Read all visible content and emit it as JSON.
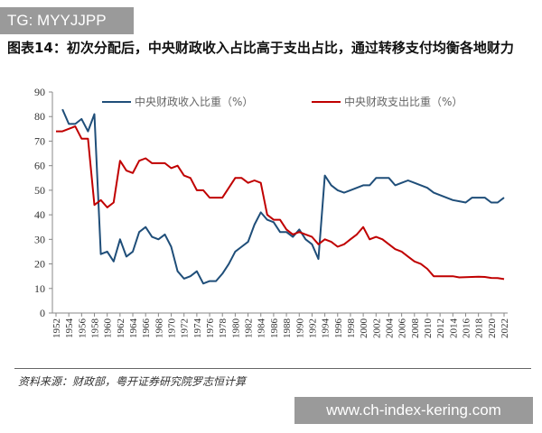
{
  "watermark_top": "TG: MYYJJPP",
  "watermark_bottom": "www.ch-index-kering.com",
  "title": "图表14：初次分配后，中央财政收入占比高于支出占比，通过转移支付均衡各地财力",
  "source": "资料来源：财政部，粤开证券研究院罗志恒计算",
  "chart_data": {
    "type": "line",
    "title": "",
    "xlabel": "",
    "ylabel": "",
    "ylim": [
      0,
      90
    ],
    "yticks": [
      0,
      10,
      20,
      30,
      40,
      50,
      60,
      70,
      80,
      90
    ],
    "xlim": [
      1952,
      2022
    ],
    "xticks": [
      1952,
      1954,
      1956,
      1958,
      1960,
      1962,
      1964,
      1966,
      1968,
      1970,
      1972,
      1974,
      1976,
      1978,
      1980,
      1982,
      1984,
      1986,
      1988,
      1990,
      1992,
      1994,
      1996,
      1998,
      2000,
      2002,
      2004,
      2006,
      2008,
      2010,
      2012,
      2014,
      2016,
      2018,
      2020,
      2022
    ],
    "grid": false,
    "legend": "top",
    "x": [
      1952,
      1953,
      1954,
      1955,
      1956,
      1957,
      1958,
      1959,
      1960,
      1961,
      1962,
      1963,
      1964,
      1965,
      1966,
      1967,
      1968,
      1969,
      1970,
      1971,
      1972,
      1973,
      1974,
      1975,
      1976,
      1977,
      1978,
      1979,
      1980,
      1981,
      1982,
      1983,
      1984,
      1985,
      1986,
      1987,
      1988,
      1989,
      1990,
      1991,
      1992,
      1993,
      1994,
      1995,
      1996,
      1997,
      1998,
      1999,
      2000,
      2001,
      2002,
      2003,
      2004,
      2005,
      2006,
      2007,
      2008,
      2009,
      2010,
      2011,
      2012,
      2013,
      2014,
      2015,
      2016,
      2017,
      2018,
      2019,
      2020,
      2021,
      2022
    ],
    "series": [
      {
        "name": "中央财政收入比重（%）",
        "color": "#1f4e79",
        "values": [
          null,
          83,
          77,
          77,
          79,
          74,
          81,
          24,
          25,
          21,
          30,
          23,
          25,
          33,
          35,
          31,
          30,
          32,
          27,
          17,
          14,
          15,
          17,
          12,
          13,
          13,
          16,
          20,
          25,
          27,
          29,
          36,
          41,
          38,
          37,
          33,
          33,
          31,
          34,
          30,
          28,
          22,
          56,
          52,
          50,
          49,
          50,
          51,
          52,
          52,
          55,
          55,
          55,
          52,
          53,
          54,
          53,
          52,
          51,
          49,
          48,
          47,
          46,
          45.5,
          45,
          47,
          47,
          47,
          45,
          45,
          47
        ]
      },
      {
        "name": "中央财政支出比重（%）",
        "color": "#c00000",
        "values": [
          74,
          74,
          75,
          76,
          71,
          71,
          44,
          46,
          43,
          45,
          62,
          58,
          57,
          62,
          63,
          61,
          61,
          61,
          59,
          60,
          56,
          55,
          50,
          50,
          47,
          47,
          47,
          51,
          55,
          55,
          53,
          54,
          53,
          40,
          38,
          38,
          34,
          32,
          33,
          32,
          31,
          28,
          30,
          29,
          27,
          28,
          30,
          32,
          35,
          30,
          31,
          30,
          28,
          26,
          25,
          23,
          21,
          20,
          18,
          15,
          15,
          15,
          15,
          14.5,
          14.6,
          14.7,
          14.8,
          14.7,
          14.3,
          14.2,
          13.8
        ]
      }
    ]
  }
}
